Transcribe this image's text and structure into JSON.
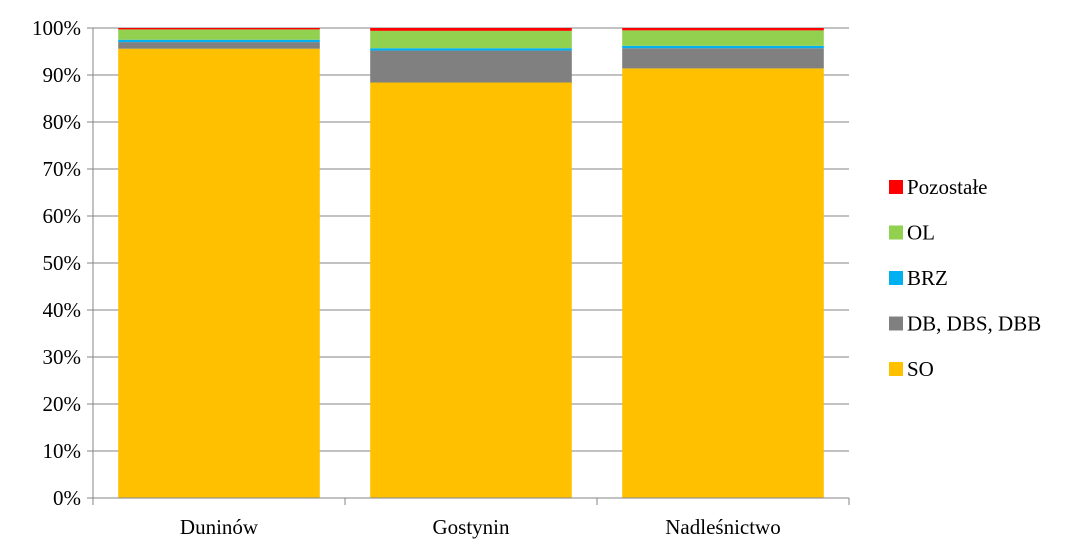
{
  "chart_data": {
    "type": "bar",
    "stacked": true,
    "normalized": true,
    "categories": [
      "Duninów",
      "Gostynin",
      "Nadleśnictwo"
    ],
    "series": [
      {
        "name": "SO",
        "color": "#FFC000",
        "values": [
          95.6,
          88.4,
          91.4
        ]
      },
      {
        "name": "DB, DBS, DBB",
        "color": "#808080",
        "values": [
          1.4,
          6.8,
          4.3
        ]
      },
      {
        "name": "BRZ",
        "color": "#00B0F0",
        "values": [
          0.5,
          0.5,
          0.5
        ]
      },
      {
        "name": "OL",
        "color": "#92D050",
        "values": [
          2.2,
          3.7,
          3.3
        ]
      },
      {
        "name": "Pozostałe",
        "color": "#FF0000",
        "values": [
          0.3,
          0.6,
          0.5
        ]
      }
    ],
    "ylim": [
      0,
      100
    ],
    "yticks": [
      "0%",
      "10%",
      "20%",
      "30%",
      "40%",
      "50%",
      "60%",
      "70%",
      "80%",
      "90%",
      "100%"
    ],
    "grid": true,
    "legend_position": "right",
    "legend_order": [
      "Pozostałe",
      "OL",
      "BRZ",
      "DB, DBS, DBB",
      "SO"
    ],
    "title": "",
    "xlabel": "",
    "ylabel": ""
  }
}
